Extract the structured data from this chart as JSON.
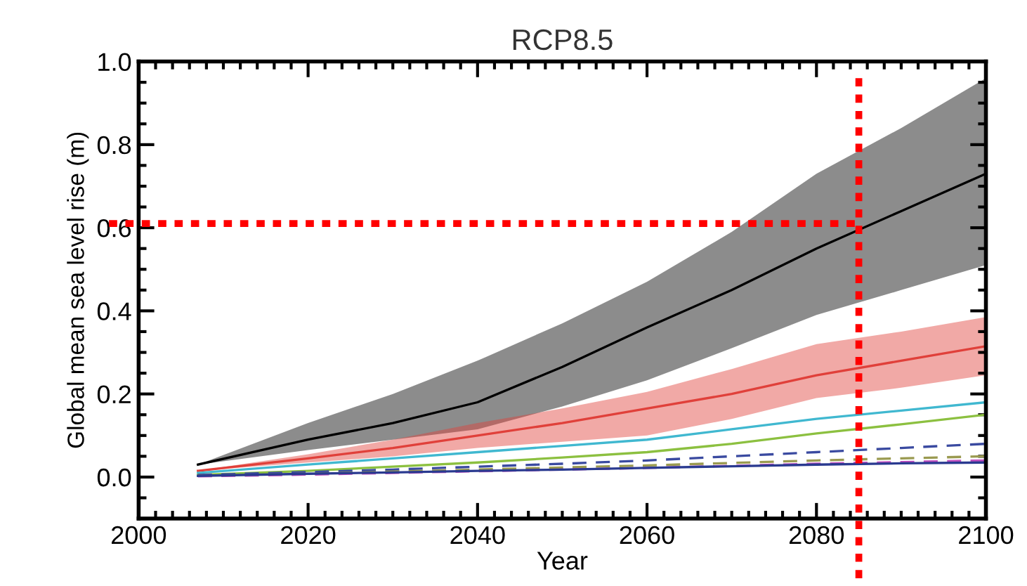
{
  "chart_data": {
    "type": "line",
    "title": "RCP8.5",
    "xlabel": "Year",
    "ylabel": "Global mean sea level rise (m)",
    "x": [
      2007,
      2020,
      2030,
      2040,
      2050,
      2060,
      2070,
      2080,
      2090,
      2100
    ],
    "xlim": [
      2000,
      2100
    ],
    "xticks": [
      2000,
      2020,
      2040,
      2060,
      2080,
      2100
    ],
    "ylim": [
      -0.1,
      1.0
    ],
    "yticks": [
      {
        "value": 0.0,
        "label": "0.0"
      },
      0.2,
      0.4,
      0.6,
      0.8,
      {
        "value": 1.0,
        "label": "1.0"
      }
    ],
    "grid": false,
    "legend": false,
    "marker": "none",
    "series": [
      {
        "color": "#000000",
        "values": [
          0.03,
          0.09,
          0.13,
          0.18,
          0.265,
          0.36,
          0.45,
          0.55,
          0.64,
          0.73
        ],
        "lower": [
          0.03,
          0.065,
          0.09,
          0.115,
          0.17,
          0.233,
          0.31,
          0.39,
          0.45,
          0.51
        ],
        "upper": [
          0.03,
          0.13,
          0.2,
          0.28,
          0.37,
          0.47,
          0.59,
          0.73,
          0.84,
          0.96
        ]
      },
      {
        "color": "#e0403a",
        "values": [
          0.015,
          0.045,
          0.07,
          0.1,
          0.13,
          0.165,
          0.2,
          0.245,
          0.28,
          0.315
        ],
        "lower": [
          0.015,
          0.035,
          0.05,
          0.07,
          0.085,
          0.1,
          0.14,
          0.19,
          0.215,
          0.245
        ],
        "upper": [
          0.015,
          0.055,
          0.09,
          0.13,
          0.165,
          0.205,
          0.26,
          0.32,
          0.35,
          0.385
        ]
      },
      {
        "color": "#40b8d0",
        "values": [
          0.01,
          0.03,
          0.045,
          0.06,
          0.075,
          0.09,
          0.115,
          0.14,
          0.16,
          0.18
        ]
      },
      {
        "color": "#8cc040",
        "values": [
          0.005,
          0.015,
          0.025,
          0.035,
          0.047,
          0.06,
          0.08,
          0.105,
          0.127,
          0.15
        ]
      },
      {
        "color": "#3a4aa0",
        "line_style": "dashed",
        "values": [
          0.005,
          0.012,
          0.018,
          0.025,
          0.032,
          0.04,
          0.05,
          0.06,
          0.07,
          0.08
        ]
      },
      {
        "color": "#9a9a50",
        "line_style": "dashed",
        "values": [
          0.003,
          0.008,
          0.013,
          0.018,
          0.023,
          0.028,
          0.034,
          0.04,
          0.045,
          0.05
        ]
      },
      {
        "color": "#c050c0",
        "line_style": "dashed",
        "values": [
          0.002,
          0.006,
          0.01,
          0.014,
          0.018,
          0.022,
          0.027,
          0.032,
          0.036,
          0.04
        ]
      },
      {
        "color": "#2a3a90",
        "values": [
          0.003,
          0.008,
          0.011,
          0.015,
          0.018,
          0.022,
          0.026,
          0.03,
          0.033,
          0.035
        ]
      }
    ],
    "ref_lines": [
      {
        "axis": "y",
        "value": 0.61,
        "color": "#ff0000",
        "line_style": "dotted"
      },
      {
        "axis": "x",
        "value": 2085,
        "color": "#ff0000",
        "line_style": "dotted"
      }
    ]
  }
}
